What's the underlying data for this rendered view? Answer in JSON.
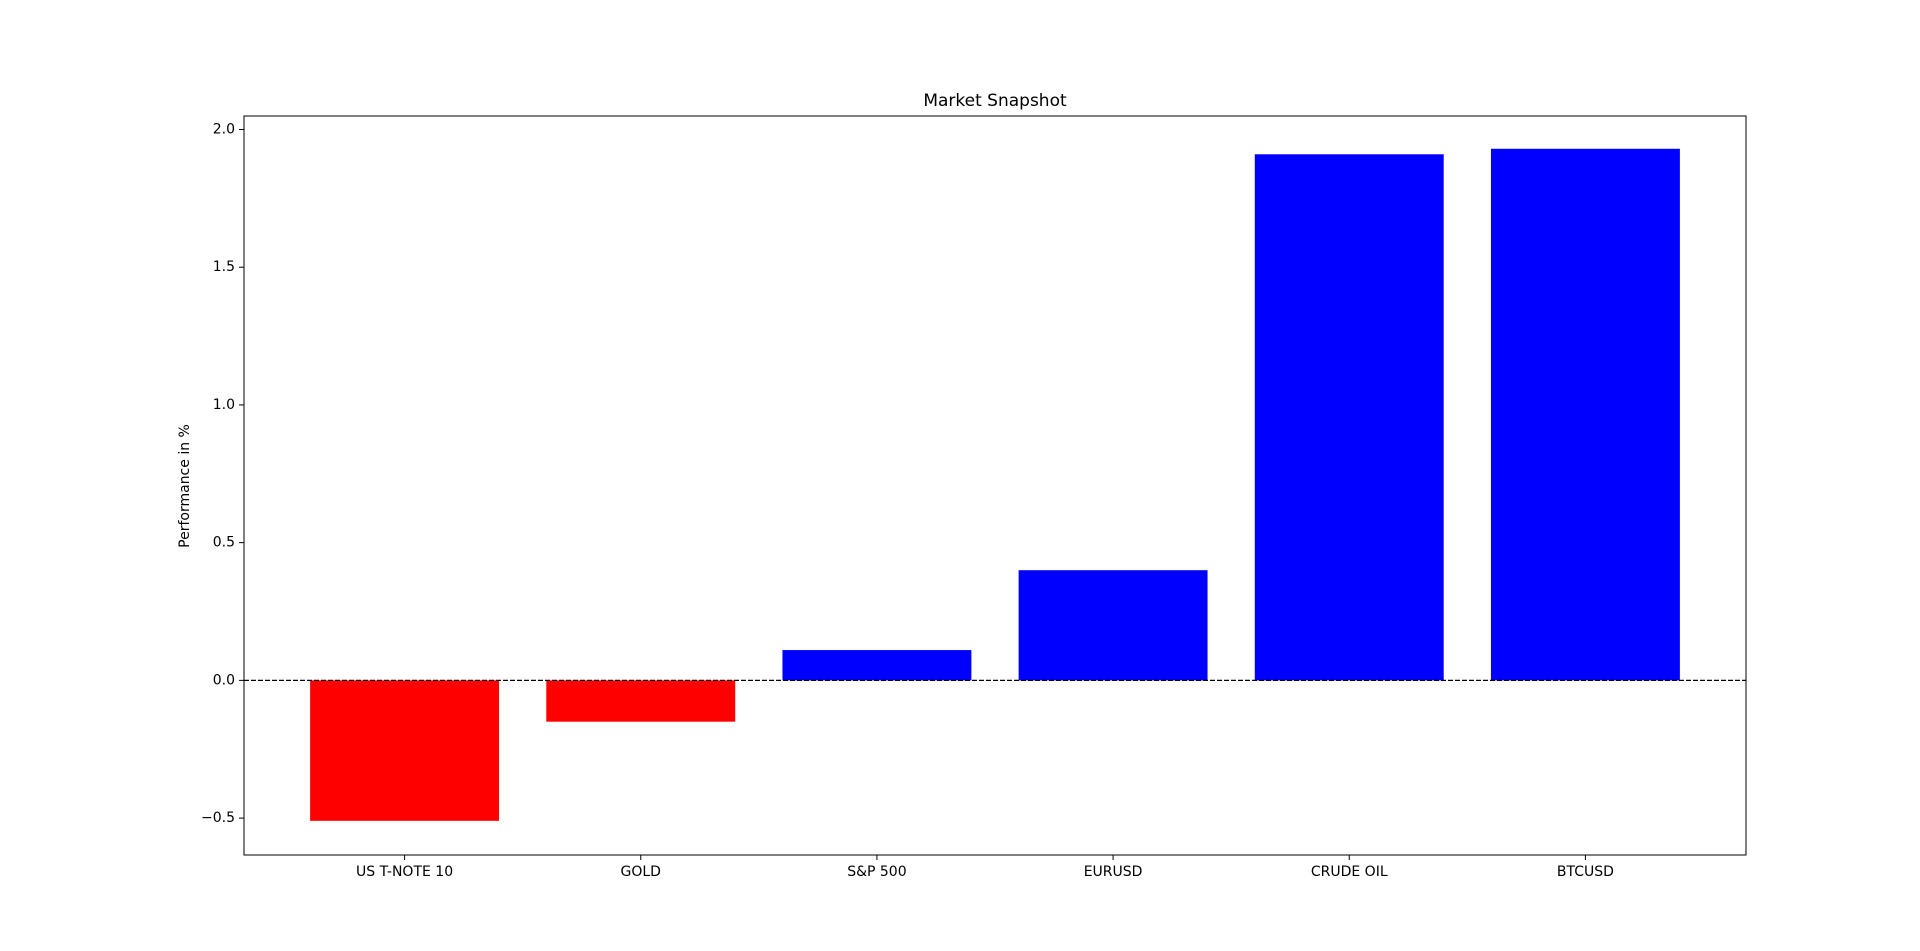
{
  "chart_data": {
    "type": "bar",
    "title": "Market Snapshot",
    "y_label": "Performance in %",
    "categories": [
      "US T-NOTE 10",
      "GOLD",
      "S&P 500",
      "EURUSD",
      "CRUDE OIL",
      "BTCUSD"
    ],
    "values": [
      -0.51,
      -0.15,
      0.11,
      0.4,
      1.91,
      1.93
    ],
    "colors": [
      "#ff0000",
      "#ff0000",
      "#0000ff",
      "#0000ff",
      "#0000ff",
      "#0000ff"
    ],
    "ylim": [
      -0.634,
      2.049
    ],
    "yticks": [
      {
        "value": -0.5,
        "label": "−0.5"
      },
      {
        "value": 0,
        "label": "0.0"
      },
      0.5,
      {
        "value": 1,
        "label": "1.0"
      },
      1.5,
      {
        "value": 2,
        "label": "2.0"
      }
    ],
    "reference_line": 0,
    "grid": false
  }
}
